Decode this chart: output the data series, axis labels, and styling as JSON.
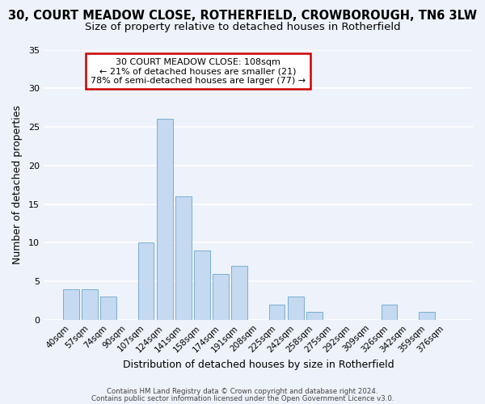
{
  "title": "30, COURT MEADOW CLOSE, ROTHERFIELD, CROWBOROUGH, TN6 3LW",
  "subtitle": "Size of property relative to detached houses in Rotherfield",
  "xlabel": "Distribution of detached houses by size in Rotherfield",
  "ylabel": "Number of detached properties",
  "categories": [
    "40sqm",
    "57sqm",
    "74sqm",
    "90sqm",
    "107sqm",
    "124sqm",
    "141sqm",
    "158sqm",
    "174sqm",
    "191sqm",
    "208sqm",
    "225sqm",
    "242sqm",
    "258sqm",
    "275sqm",
    "292sqm",
    "309sqm",
    "326sqm",
    "342sqm",
    "359sqm",
    "376sqm"
  ],
  "values": [
    4,
    4,
    3,
    0,
    10,
    26,
    16,
    9,
    6,
    7,
    0,
    2,
    3,
    1,
    0,
    0,
    0,
    2,
    0,
    1,
    0
  ],
  "highlight_index": 4,
  "bar_color": "#c5d9f0",
  "bar_edge_color": "#7aafd4",
  "ylim": [
    0,
    35
  ],
  "yticks": [
    0,
    5,
    10,
    15,
    20,
    25,
    30,
    35
  ],
  "annotation_title": "30 COURT MEADOW CLOSE: 108sqm",
  "annotation_line1": "← 21% of detached houses are smaller (21)",
  "annotation_line2": "78% of semi-detached houses are larger (77) →",
  "annotation_box_color": "#ffffff",
  "annotation_box_edge": "#cc0000",
  "footer1": "Contains HM Land Registry data © Crown copyright and database right 2024.",
  "footer2": "Contains public sector information licensed under the Open Government Licence v3.0.",
  "bg_color": "#eef2fa",
  "grid_color": "#ffffff",
  "title_fontsize": 10.5,
  "subtitle_fontsize": 9.5
}
